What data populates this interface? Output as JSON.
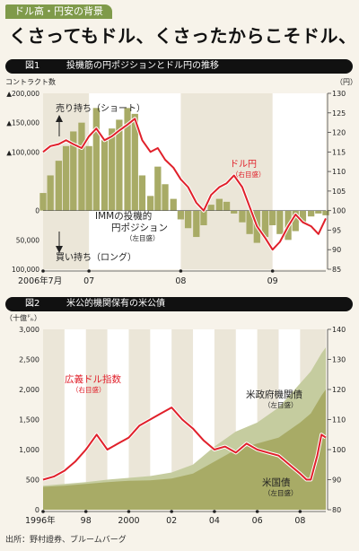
{
  "header": {
    "tag": "ドル高・円安の背景",
    "headline": "くさってもドル、くさったからこそドル、"
  },
  "source": "出所：野村證券、ブルームバーグ",
  "colors": {
    "accent_green": "#7f9a4a",
    "line_red": "#e0202a",
    "area_olive": "#a8ab66",
    "area_light": "#c5cc9f",
    "area_pale": "#e2e6c8"
  },
  "chart_data": [
    {
      "type": "bar",
      "figure_no": "図1",
      "title": "投機筋の円ポジションとドル円の推移",
      "left_unit": "コントラクト数",
      "right_unit": "（円）",
      "ylim_left": [
        -100000,
        200000
      ],
      "ylim_right": [
        85,
        130
      ],
      "left_ticks": [
        {
          "v": 200000,
          "label": "▲200,000"
        },
        {
          "v": 150000,
          "label": "▲150,000"
        },
        {
          "v": 100000,
          "label": "▲100,000"
        },
        {
          "v": 0,
          "label": "0"
        },
        {
          "v": -50000,
          "label": "50,000"
        },
        {
          "v": -100000,
          "label": "100,000"
        }
      ],
      "right_ticks": [
        130,
        125,
        120,
        115,
        110,
        105,
        100,
        95,
        90,
        85
      ],
      "x_range": [
        2006.5,
        2009.58
      ],
      "x_labels": [
        {
          "x": 2006.5,
          "label": "2006年7月"
        },
        {
          "x": 2007.0,
          "label": "07"
        },
        {
          "x": 2008.0,
          "label": "08"
        },
        {
          "x": 2009.0,
          "label": "09"
        }
      ],
      "shaded_periods": [
        [
          2007.0,
          2008.0
        ],
        [
          2009.0,
          2009.58
        ]
      ],
      "annotations": {
        "short": "売り持ち（ショート）",
        "long": "買い持ち（ロング）",
        "position_label_1": "IMMの投機的",
        "position_label_2": "円ポジション",
        "position_axis": "（左目盛）",
        "usdjpy_label": "ドル円",
        "usdjpy_axis": "（右目盛）"
      },
      "series": [
        {
          "name": "IMMの投機的円ポジション",
          "type": "bar",
          "points": [
            [
              2006.5,
              30000
            ],
            [
              2006.58,
              60000
            ],
            [
              2006.67,
              85000
            ],
            [
              2006.75,
              110000
            ],
            [
              2006.83,
              135000
            ],
            [
              2006.92,
              150000
            ],
            [
              2007.0,
              110000
            ],
            [
              2007.08,
              175000
            ],
            [
              2007.17,
              120000
            ],
            [
              2007.25,
              140000
            ],
            [
              2007.33,
              155000
            ],
            [
              2007.42,
              175000
            ],
            [
              2007.5,
              165000
            ],
            [
              2007.58,
              60000
            ],
            [
              2007.67,
              25000
            ],
            [
              2007.75,
              75000
            ],
            [
              2007.83,
              45000
            ],
            [
              2007.92,
              20000
            ],
            [
              2008.0,
              -15000
            ],
            [
              2008.08,
              -30000
            ],
            [
              2008.17,
              -45000
            ],
            [
              2008.25,
              -25000
            ],
            [
              2008.33,
              10000
            ],
            [
              2008.42,
              20000
            ],
            [
              2008.5,
              15000
            ],
            [
              2008.58,
              -5000
            ],
            [
              2008.67,
              -20000
            ],
            [
              2008.75,
              -40000
            ],
            [
              2008.83,
              -55000
            ],
            [
              2008.92,
              -45000
            ],
            [
              2009.0,
              -25000
            ],
            [
              2009.08,
              -40000
            ],
            [
              2009.17,
              -50000
            ],
            [
              2009.25,
              -35000
            ],
            [
              2009.33,
              -20000
            ],
            [
              2009.42,
              -10000
            ],
            [
              2009.5,
              -5000
            ],
            [
              2009.58,
              -8000
            ]
          ]
        },
        {
          "name": "ドル円",
          "type": "line",
          "points": [
            [
              2006.5,
              115
            ],
            [
              2006.58,
              116.5
            ],
            [
              2006.67,
              117
            ],
            [
              2006.75,
              118
            ],
            [
              2006.83,
              117
            ],
            [
              2006.92,
              116
            ],
            [
              2007.0,
              119
            ],
            [
              2007.08,
              121
            ],
            [
              2007.17,
              118
            ],
            [
              2007.25,
              119
            ],
            [
              2007.33,
              120.5
            ],
            [
              2007.42,
              122
            ],
            [
              2007.5,
              123.5
            ],
            [
              2007.58,
              118
            ],
            [
              2007.67,
              115
            ],
            [
              2007.75,
              116
            ],
            [
              2007.83,
              113
            ],
            [
              2007.92,
              111
            ],
            [
              2008.0,
              108
            ],
            [
              2008.08,
              106
            ],
            [
              2008.17,
              102
            ],
            [
              2008.25,
              100
            ],
            [
              2008.33,
              104
            ],
            [
              2008.42,
              106
            ],
            [
              2008.5,
              107
            ],
            [
              2008.58,
              109
            ],
            [
              2008.67,
              106
            ],
            [
              2008.75,
              101
            ],
            [
              2008.83,
              96
            ],
            [
              2008.92,
              93
            ],
            [
              2009.0,
              90
            ],
            [
              2009.08,
              92
            ],
            [
              2009.17,
              96
            ],
            [
              2009.25,
              99
            ],
            [
              2009.33,
              97
            ],
            [
              2009.42,
              96
            ],
            [
              2009.5,
              94
            ],
            [
              2009.58,
              98
            ]
          ]
        }
      ]
    },
    {
      "type": "line",
      "figure_no": "図2",
      "title": "米公的機関保有の米公債",
      "left_unit": "（十億㌦）",
      "ylim_left": [
        0,
        3000
      ],
      "ylim_right": [
        80,
        140
      ],
      "left_ticks": [
        3000,
        2500,
        2000,
        1500,
        1000,
        500,
        0
      ],
      "left_tick_labels": [
        "3,000",
        "2,500",
        "2,000",
        "1,500",
        "1,000",
        "500",
        "0"
      ],
      "right_ticks": [
        140,
        130,
        120,
        110,
        100,
        90,
        80
      ],
      "x_range": [
        1996.0,
        2009.2
      ],
      "x_labels": [
        {
          "x": 1996,
          "label": "1996年"
        },
        {
          "x": 1998,
          "label": "98"
        },
        {
          "x": 2000,
          "label": "2000"
        },
        {
          "x": 2002,
          "label": "02"
        },
        {
          "x": 2004,
          "label": "04"
        },
        {
          "x": 2006,
          "label": "06"
        },
        {
          "x": 2008,
          "label": "08"
        }
      ],
      "shaded_periods": [
        [
          1997,
          1998
        ],
        [
          1999,
          2000
        ],
        [
          2001,
          2002
        ],
        [
          2003,
          2004
        ],
        [
          2005,
          2006
        ],
        [
          2007,
          2008
        ]
      ],
      "annotations": {
        "index_label": "広義ドル指数",
        "index_axis": "（右目盛）",
        "agency_label": "米政府機関債",
        "agency_axis": "（左目盛）",
        "treasury_label": "米国債",
        "treasury_axis": "（左目盛）"
      },
      "series": [
        {
          "name": "米国債",
          "type": "area",
          "points": [
            [
              1996.0,
              380
            ],
            [
              1997.0,
              400
            ],
            [
              1998.0,
              430
            ],
            [
              1999.0,
              460
            ],
            [
              2000.0,
              480
            ],
            [
              2001.0,
              490
            ],
            [
              2002.0,
              520
            ],
            [
              2003.0,
              600
            ],
            [
              2004.0,
              800
            ],
            [
              2005.0,
              1000
            ],
            [
              2006.0,
              1100
            ],
            [
              2007.0,
              1200
            ],
            [
              2008.0,
              1450
            ],
            [
              2008.5,
              1600
            ],
            [
              2009.0,
              1900
            ],
            [
              2009.2,
              2000
            ]
          ]
        },
        {
          "name": "米政府機関債",
          "type": "area",
          "points": [
            [
              1996.0,
              400
            ],
            [
              1997.0,
              430
            ],
            [
              1998.0,
              460
            ],
            [
              1999.0,
              500
            ],
            [
              2000.0,
              530
            ],
            [
              2001.0,
              560
            ],
            [
              2002.0,
              620
            ],
            [
              2003.0,
              750
            ],
            [
              2004.0,
              1050
            ],
            [
              2005.0,
              1300
            ],
            [
              2006.0,
              1450
            ],
            [
              2007.0,
              1700
            ],
            [
              2008.0,
              2100
            ],
            [
              2008.5,
              2300
            ],
            [
              2009.0,
              2600
            ],
            [
              2009.2,
              2700
            ]
          ]
        },
        {
          "name": "広義ドル指数",
          "type": "line",
          "points": [
            [
              1996.0,
              90
            ],
            [
              1996.5,
              91
            ],
            [
              1997.0,
              93
            ],
            [
              1997.5,
              96
            ],
            [
              1998.0,
              100
            ],
            [
              1998.5,
              105
            ],
            [
              1999.0,
              100
            ],
            [
              1999.5,
              102
            ],
            [
              2000.0,
              104
            ],
            [
              2000.5,
              108
            ],
            [
              2001.0,
              110
            ],
            [
              2001.5,
              112
            ],
            [
              2002.0,
              114
            ],
            [
              2002.5,
              110
            ],
            [
              2003.0,
              107
            ],
            [
              2003.5,
              103
            ],
            [
              2004.0,
              100
            ],
            [
              2004.5,
              101
            ],
            [
              2005.0,
              99
            ],
            [
              2005.5,
              102
            ],
            [
              2006.0,
              100
            ],
            [
              2006.5,
              99
            ],
            [
              2007.0,
              98
            ],
            [
              2007.5,
              95
            ],
            [
              2008.0,
              92
            ],
            [
              2008.3,
              90
            ],
            [
              2008.5,
              90
            ],
            [
              2008.8,
              98
            ],
            [
              2009.0,
              105
            ],
            [
              2009.2,
              104
            ]
          ]
        }
      ]
    }
  ]
}
